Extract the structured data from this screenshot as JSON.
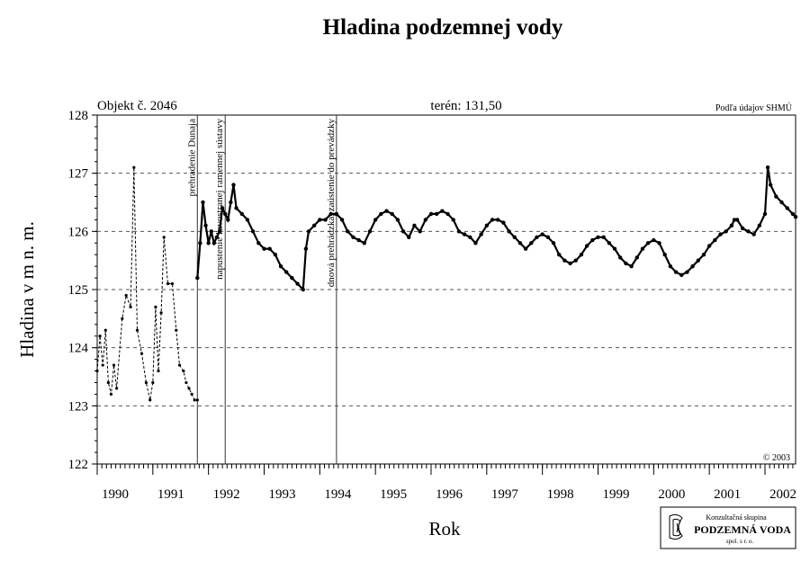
{
  "chart_data": {
    "type": "line",
    "title": "Hladina podzemnej vody",
    "xlabel": "Rok",
    "ylabel": "Hladina v m n. m.",
    "ylim": [
      122,
      128
    ],
    "xlim": [
      1990.0,
      2002.55
    ],
    "y_ticks": [
      "122",
      "123",
      "124",
      "125",
      "126",
      "127",
      "128"
    ],
    "x_ticks": [
      "1990",
      "1991",
      "1992",
      "1993",
      "1994",
      "1995",
      "1996",
      "1997",
      "1998",
      "1999",
      "2000",
      "2001",
      "2002"
    ],
    "grid": "horizontal dashed",
    "object_label": "Objekt č. 2046",
    "terrain_label": "terén: 131,50",
    "source_label": "Podľa údajov SHMÚ",
    "copyright": "© 2003",
    "events": [
      {
        "x": 1991.8,
        "label": "prehradenie Dunaja"
      },
      {
        "x": 1992.3,
        "label": "napustenie ľavostranej ramennej sústavy"
      },
      {
        "x": 1994.3,
        "label": "dnová prehrádzka, zaústenie do prevádzky"
      }
    ],
    "series": [
      {
        "style": "dashed with markers",
        "x": [
          1990.0,
          1990.05,
          1990.1,
          1990.15,
          1990.2,
          1990.25,
          1990.3,
          1990.35,
          1990.45,
          1990.52,
          1990.6,
          1990.66,
          1990.72,
          1990.8,
          1990.88,
          1990.95,
          1991.0,
          1991.05,
          1991.1,
          1991.15,
          1991.2,
          1991.27,
          1991.35,
          1991.42,
          1991.48,
          1991.55,
          1991.6,
          1991.65,
          1991.7,
          1991.75,
          1991.8
        ],
        "y": [
          123.6,
          124.2,
          123.7,
          124.3,
          123.4,
          123.2,
          123.7,
          123.3,
          124.5,
          124.9,
          124.7,
          127.1,
          124.3,
          123.9,
          123.4,
          123.1,
          123.4,
          124.7,
          123.6,
          124.6,
          125.9,
          125.1,
          125.1,
          124.3,
          123.7,
          123.6,
          123.4,
          123.3,
          123.2,
          123.1,
          123.1
        ]
      },
      {
        "style": "solid with markers",
        "x": [
          1991.8,
          1991.85,
          1991.9,
          1991.95,
          1992.0,
          1992.05,
          1992.1,
          1992.15,
          1992.2,
          1992.25,
          1992.3,
          1992.35,
          1992.4,
          1992.45,
          1992.5,
          1992.6,
          1992.7,
          1992.8,
          1992.9,
          1993.0,
          1993.1,
          1993.2,
          1993.3,
          1993.4,
          1993.5,
          1993.6,
          1993.7,
          1993.75,
          1993.8,
          1993.9,
          1994.0,
          1994.1,
          1994.2,
          1994.3,
          1994.4,
          1994.5,
          1994.6,
          1994.7,
          1994.8,
          1994.9,
          1995.0,
          1995.1,
          1995.2,
          1995.3,
          1995.4,
          1995.5,
          1995.6,
          1995.7,
          1995.8,
          1995.9,
          1996.0,
          1996.1,
          1996.2,
          1996.3,
          1996.4,
          1996.5,
          1996.6,
          1996.7,
          1996.8,
          1996.9,
          1997.0,
          1997.1,
          1997.2,
          1997.3,
          1997.4,
          1997.5,
          1997.6,
          1997.7,
          1997.8,
          1997.9,
          1998.0,
          1998.1,
          1998.2,
          1998.3,
          1998.4,
          1998.5,
          1998.6,
          1998.7,
          1998.8,
          1998.9,
          1999.0,
          1999.1,
          1999.2,
          1999.3,
          1999.4,
          1999.5,
          1999.6,
          1999.7,
          1999.8,
          1999.9,
          2000.0,
          2000.1,
          2000.2,
          2000.3,
          2000.4,
          2000.5,
          2000.6,
          2000.7,
          2000.8,
          2000.9,
          2001.0,
          2001.1,
          2001.2,
          2001.3,
          2001.4,
          2001.45,
          2001.5,
          2001.6,
          2001.7,
          2001.8,
          2001.9,
          2002.0,
          2002.05,
          2002.1,
          2002.2,
          2002.3,
          2002.4,
          2002.5,
          2002.55
        ],
        "y": [
          125.2,
          125.8,
          126.5,
          126.1,
          125.8,
          126.0,
          125.8,
          125.9,
          126.0,
          126.4,
          126.3,
          126.2,
          126.5,
          126.8,
          126.4,
          126.3,
          126.2,
          126.0,
          125.8,
          125.7,
          125.7,
          125.6,
          125.4,
          125.3,
          125.2,
          125.1,
          125.0,
          125.7,
          126.0,
          126.1,
          126.2,
          126.2,
          126.3,
          126.3,
          126.2,
          126.0,
          125.9,
          125.85,
          125.8,
          126.0,
          126.2,
          126.3,
          126.35,
          126.3,
          126.2,
          126.0,
          125.9,
          126.1,
          126.0,
          126.2,
          126.3,
          126.3,
          126.35,
          126.3,
          126.2,
          126.0,
          125.95,
          125.9,
          125.8,
          125.95,
          126.1,
          126.2,
          126.2,
          126.15,
          126.0,
          125.9,
          125.8,
          125.7,
          125.8,
          125.9,
          125.95,
          125.9,
          125.8,
          125.6,
          125.5,
          125.45,
          125.5,
          125.6,
          125.75,
          125.85,
          125.9,
          125.9,
          125.8,
          125.7,
          125.55,
          125.45,
          125.4,
          125.55,
          125.7,
          125.8,
          125.85,
          125.8,
          125.6,
          125.4,
          125.3,
          125.25,
          125.3,
          125.4,
          125.5,
          125.6,
          125.75,
          125.85,
          125.95,
          126.0,
          126.1,
          126.2,
          126.2,
          126.05,
          126.0,
          125.95,
          126.1,
          126.3,
          127.1,
          126.8,
          126.6,
          126.5,
          126.4,
          126.3,
          126.25
        ]
      }
    ]
  },
  "logo": {
    "line1": "Konzultačná skupina",
    "line2": "PODZEMNÁ VODA",
    "line3": "spol. s r. o."
  }
}
